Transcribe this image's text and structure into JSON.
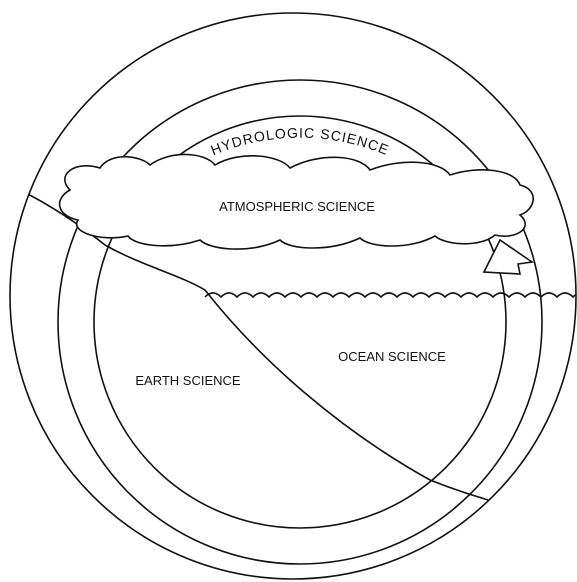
{
  "ring_label": "HYDROLOGIC SCIENCE",
  "regions": {
    "atmosphere": "ATMOSPHERIC SCIENCE",
    "ocean": "OCEAN SCIENCE",
    "earth": "EARTH SCIENCE"
  }
}
